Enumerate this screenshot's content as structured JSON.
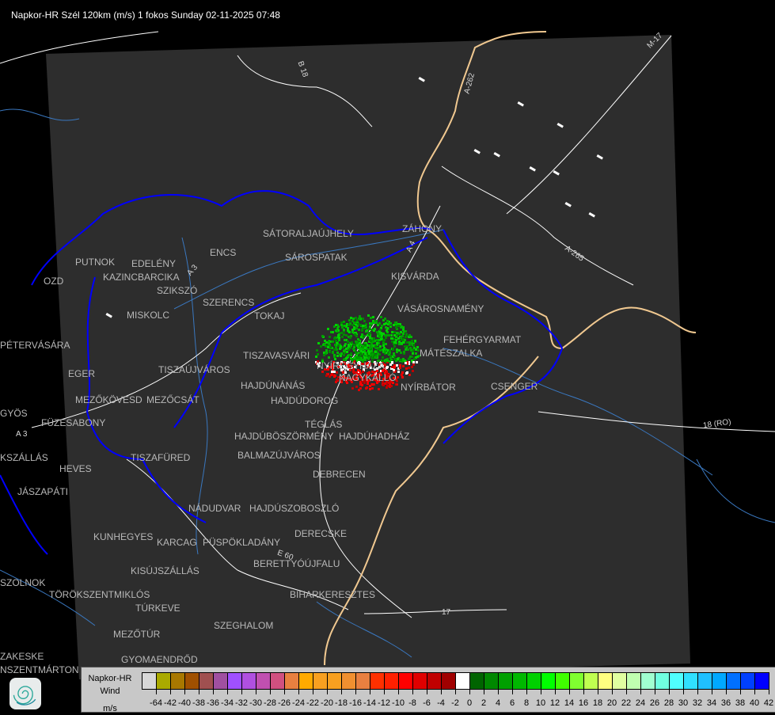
{
  "title": "Napkor-HR Szél 120km (m/s) 1 fokos Sunday 02-11-2025 07:48",
  "map": {
    "background_color": "#000000",
    "coverage_color": "#2d2d2d",
    "country_border_color": "#f0c890",
    "region_border_color": "#0000ff",
    "river_color": "#3a78c0",
    "road_color": "#ffffff",
    "places": [
      "SÁTORALJAÚJHELY",
      "ZÁHONY",
      "SÁROSPATAK",
      "PUTNOK",
      "EDELÉNY",
      "ENCS",
      "KAZINCBARCIKA",
      "KISVÁRDA",
      "SZIKSZÓ",
      "SZERENCS",
      "VÁSÁROSNAMÉNY",
      "MISKOLC",
      "TOKAJ",
      "FEHÉRGYARMAT",
      "MÁTÉSZALKA",
      "PÉTERVÁSÁRA",
      "TISZAVASVÁRI",
      "NYÍREGYHÁZA",
      "NAGYKÁLLÓ",
      "EGER",
      "TISZAÚJVÁROS",
      "HAJDÚNÁNÁS",
      "NYÍRBÁTOR",
      "CSENGER",
      "MEZŐKÖVESD",
      "MEZŐCSÁT",
      "HAJDÚDOROG",
      "GYÖS",
      "FÜZESABONY",
      "TÉGLÁS",
      "HAJDÚBÖSZÖRMÉNY",
      "HAJDÚHADHÁZ",
      "HEVES",
      "TISZAFÜRED",
      "BALMAZÚJVÁROS",
      "KSZÁLLÁS",
      "DEBRECEN",
      "JÁSZAPÁTI",
      "NÁDUDVAR",
      "HAJDÚSZOBOSZLÓ",
      "KUNHEGYES",
      "KARCAG",
      "DERECSKE",
      "PÜSPÖKLADÁNY",
      "BERETTYÓÚJFALU",
      "KISÚJSZÁLLÁS",
      "SZOLNOK",
      "TÖRÖKSZENTMIKLÓS",
      "BIHARKERESZTES",
      "TÚRKEVE",
      "SZEGHALOM",
      "MEZŐTÚR",
      "ZAKESKE",
      "GYOMAENDRŐD",
      "NSZENTMÁRTON",
      "OZD"
    ],
    "roads": [
      "B 18",
      "M-17",
      "A-262",
      "A-265",
      "A 3",
      "18 (RO)",
      "E 60",
      "A 4",
      "17",
      "A 3"
    ]
  },
  "radar": {
    "echo_colors": [
      "#00a000",
      "#00b800",
      "#008800",
      "#00d000",
      "#ff0000",
      "#c00000",
      "#e00000",
      "#ffffff"
    ]
  },
  "legend": {
    "title_line1": "Napkor-HR",
    "title_line2": "Wind",
    "unit": "m/s",
    "labels": [
      "-64",
      "-42",
      "-40",
      "-38",
      "-36",
      "-34",
      "-32",
      "-30",
      "-28",
      "-26",
      "-24",
      "-22",
      "-20",
      "-18",
      "-16",
      "-14",
      "-12",
      "-10",
      "-8",
      "-6",
      "-4",
      "-2",
      "0",
      "2",
      "4",
      "6",
      "8",
      "10",
      "12",
      "14",
      "16",
      "18",
      "20",
      "22",
      "24",
      "26",
      "28",
      "30",
      "32",
      "34",
      "36",
      "38",
      "40",
      "42"
    ],
    "colors": [
      "#d8d8d8",
      "#aaaa00",
      "#a87800",
      "#a05000",
      "#a05050",
      "#a050a0",
      "#a050ff",
      "#b050e0",
      "#c050b0",
      "#d05080",
      "#e88040",
      "#ffaa00",
      "#f8a020",
      "#f8a020",
      "#f09030",
      "#e88040",
      "#ff3000",
      "#ff2000",
      "#ff0000",
      "#e00000",
      "#c00000",
      "#a00000",
      "#ffffff",
      "#006400",
      "#008800",
      "#00a000",
      "#00b800",
      "#00d000",
      "#00ff00",
      "#40ff00",
      "#80ff30",
      "#c0ff50",
      "#ffff80",
      "#e0ffa0",
      "#c0ffb0",
      "#a0ffd0",
      "#70ffe0",
      "#50ffff",
      "#30e0ff",
      "#20c0ff",
      "#00a8ff",
      "#0070ff",
      "#0040ff",
      "#0000ff"
    ]
  }
}
